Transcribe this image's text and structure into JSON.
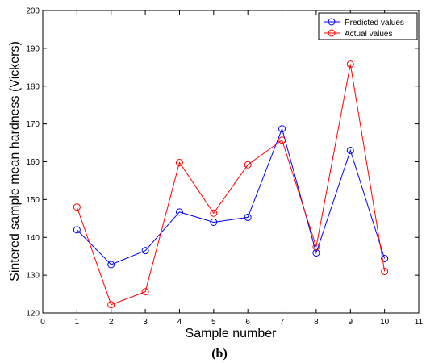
{
  "chart_data": {
    "type": "line",
    "xlabel": "Sample number",
    "ylabel": "Sintered sample mean hardness (Vickers)",
    "caption": "(b)",
    "xlim": [
      0,
      11
    ],
    "ylim": [
      120,
      200
    ],
    "x_ticks": [
      "0",
      "1",
      "2",
      "3",
      "4",
      "5",
      "6",
      "7",
      "8",
      "9",
      "10",
      "11"
    ],
    "y_ticks": [
      "120",
      "130",
      "140",
      "150",
      "160",
      "170",
      "180",
      "190",
      "200"
    ],
    "grid": false,
    "legend_position": "top-right",
    "x": [
      1,
      2,
      3,
      4,
      5,
      6,
      7,
      8,
      9,
      10
    ],
    "series": [
      {
        "name": "Predicted values",
        "color": "#0000ff",
        "marker": "circle",
        "values": [
          142,
          132.8,
          136.5,
          146.7,
          144,
          145.3,
          168.7,
          135.9,
          163,
          134.4
        ]
      },
      {
        "name": "Actual values",
        "color": "#ff0000",
        "marker": "circle",
        "values": [
          148,
          122.2,
          125.6,
          159.8,
          146.4,
          159.2,
          165.7,
          137.5,
          185.8,
          131
        ]
      }
    ]
  }
}
